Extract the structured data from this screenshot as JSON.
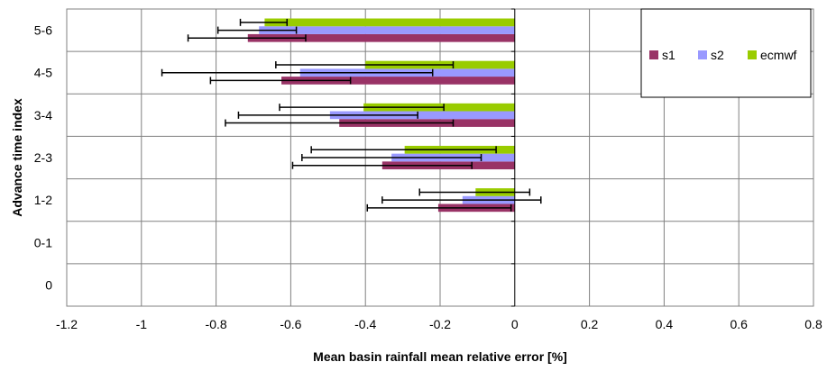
{
  "chart_data": {
    "type": "bar",
    "orientation": "horizontal",
    "title": "",
    "xlabel": "Mean basin rainfall mean relative error [%]",
    "ylabel": "Advance time index",
    "xlim": [
      -1.2,
      0.8
    ],
    "xticks": [
      "-1.2",
      "-1",
      "-0.8",
      "-0.6",
      "-0.4",
      "-0.2",
      "0",
      "0.2",
      "0.4",
      "0.6",
      "0.8"
    ],
    "xtick_values": [
      -1.2,
      -1.0,
      -0.8,
      -0.6,
      -0.4,
      -0.2,
      0,
      0.2,
      0.4,
      0.6,
      0.8
    ],
    "categories": [
      "0",
      "0-1",
      "1-2",
      "2-3",
      "3-4",
      "4-5",
      "5-6"
    ],
    "grid": "vertical",
    "legend_position": "top-right",
    "series": [
      {
        "name": "s1",
        "color": "#993366",
        "values": [
          null,
          null,
          -0.205,
          -0.355,
          -0.47,
          -0.625,
          -0.715
        ],
        "err_low": [
          null,
          null,
          -0.395,
          -0.595,
          -0.775,
          -0.815,
          -0.875
        ],
        "err_high": [
          null,
          null,
          -0.01,
          -0.115,
          -0.165,
          -0.44,
          -0.56
        ]
      },
      {
        "name": "s2",
        "color": "#9999ff",
        "values": [
          null,
          null,
          -0.14,
          -0.33,
          -0.495,
          -0.575,
          -0.685
        ],
        "err_low": [
          null,
          null,
          -0.355,
          -0.57,
          -0.74,
          -0.945,
          -0.795
        ],
        "err_high": [
          null,
          null,
          0.07,
          -0.09,
          -0.26,
          -0.22,
          -0.585
        ]
      },
      {
        "name": "ecmwf",
        "color": "#99cc00",
        "values": [
          null,
          null,
          -0.105,
          -0.295,
          -0.405,
          -0.4,
          -0.67
        ],
        "err_low": [
          null,
          null,
          -0.255,
          -0.545,
          -0.63,
          -0.64,
          -0.735
        ],
        "err_high": [
          null,
          null,
          0.04,
          -0.05,
          -0.19,
          -0.165,
          -0.61
        ]
      }
    ]
  }
}
